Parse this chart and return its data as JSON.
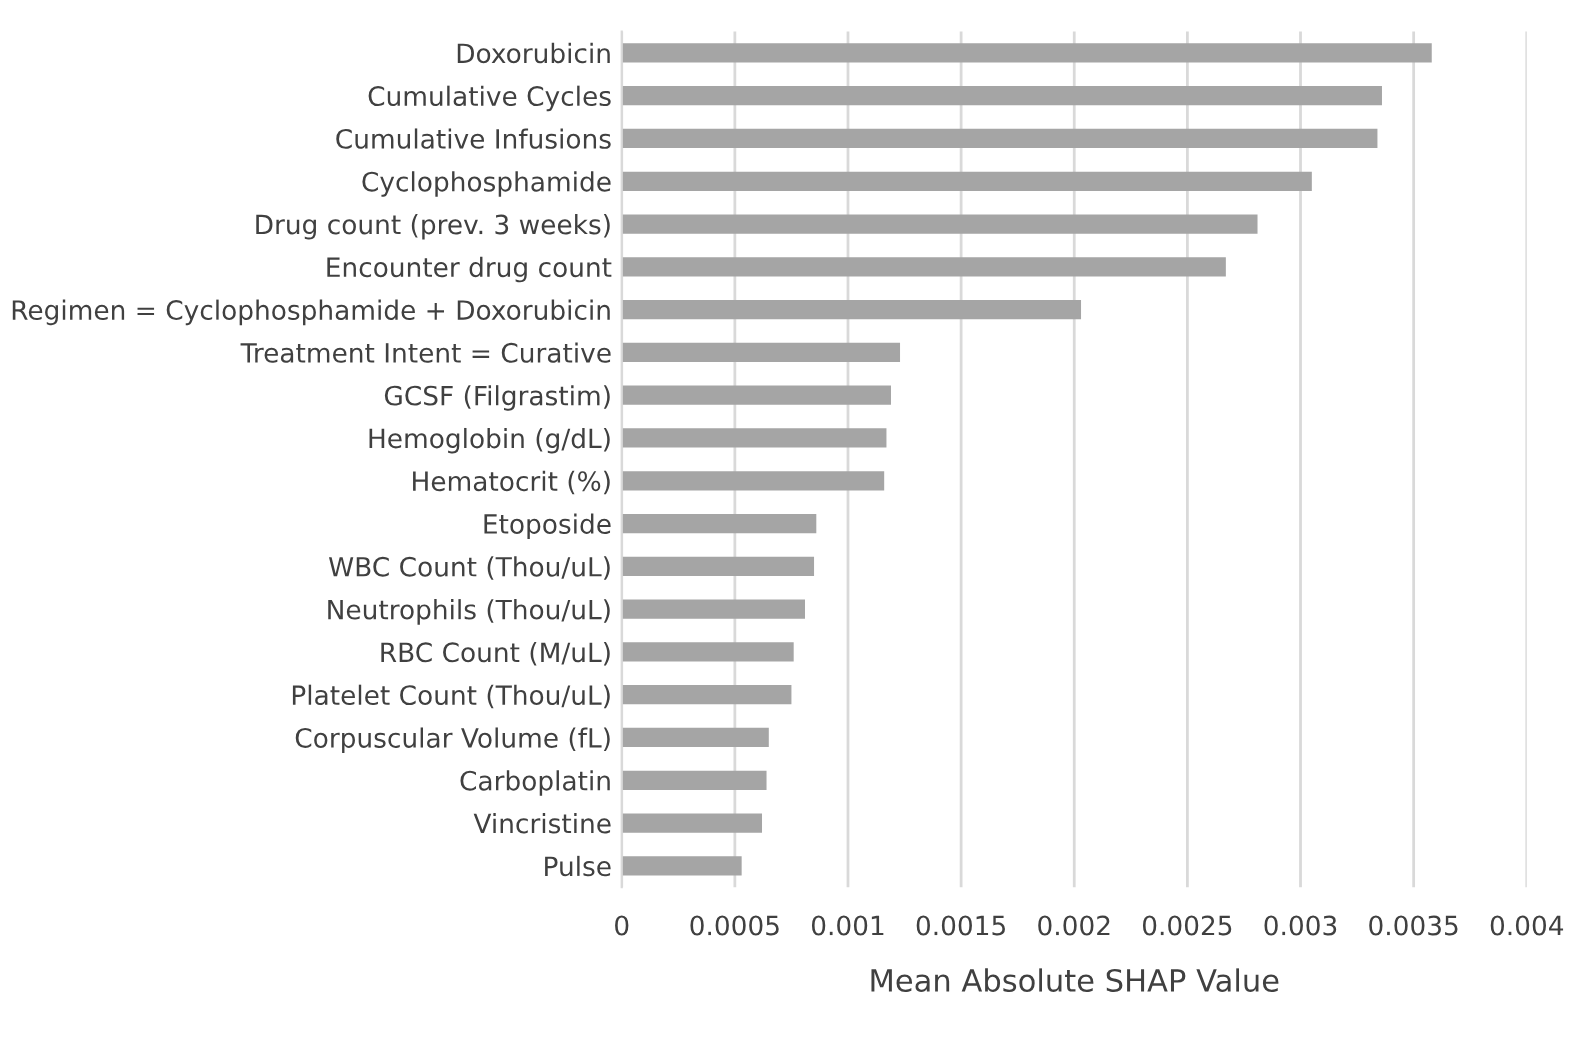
{
  "chart_data": {
    "type": "bar",
    "orientation": "horizontal",
    "xlabel": "Mean Absolute SHAP Value",
    "categories": [
      "Doxorubicin",
      "Cumulative Cycles",
      "Cumulative Infusions",
      "Cyclophosphamide",
      "Drug count (prev. 3 weeks)",
      "Encounter drug count",
      "Regimen = Cyclophosphamide + Doxorubicin",
      "Treatment Intent = Curative",
      "GCSF (Filgrastim)",
      "Hemoglobin (g/dL)",
      "Hematocrit (%)",
      "Etoposide",
      "WBC Count (Thou/uL)",
      "Neutrophils (Thou/uL)",
      "RBC Count (M/uL)",
      "Platelet Count (Thou/uL)",
      "Corpuscular Volume (fL)",
      "Carboplatin",
      "Vincristine",
      "Pulse"
    ],
    "values": [
      0.00358,
      0.00336,
      0.00334,
      0.00305,
      0.00281,
      0.00267,
      0.00203,
      0.00123,
      0.00119,
      0.00117,
      0.00116,
      0.00086,
      0.00085,
      0.00081,
      0.00076,
      0.00075,
      0.00065,
      0.00064,
      0.00062,
      0.00053
    ],
    "color": "#a5a5a5",
    "xlim": [
      0,
      0.004
    ],
    "xticks": [
      0,
      0.0005,
      0.001,
      0.0015,
      0.002,
      0.0025,
      0.003,
      0.0035,
      0.004
    ],
    "grid": "x"
  }
}
